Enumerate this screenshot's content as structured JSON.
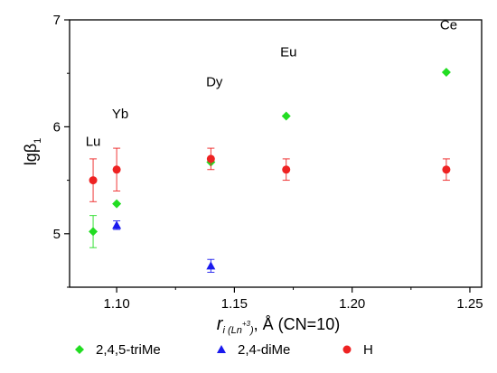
{
  "chart_data": {
    "type": "scatter",
    "title": "",
    "xlabel": {
      "main": "r",
      "sub": "i (Ln",
      "sup": "+3",
      "sub_close": ")",
      "rest": ", Å (CN=10)"
    },
    "ylabel": {
      "main": "lgβ",
      "sub": "1"
    },
    "xlim": [
      1.08,
      1.255
    ],
    "ylim": [
      4.5,
      7.0
    ],
    "x_ticks": [
      {
        "value": 1.1,
        "label": "1.10"
      },
      {
        "value": 1.15,
        "label": "1.15"
      },
      {
        "value": 1.2,
        "label": "1.20"
      },
      {
        "value": 1.25,
        "label": "1.25"
      }
    ],
    "y_ticks": [
      {
        "value": 5,
        "label": "5"
      },
      {
        "value": 6,
        "label": "6"
      },
      {
        "value": 7,
        "label": "7"
      }
    ],
    "grid": false,
    "legend_position": "bottom",
    "series": [
      {
        "name": "2,4,5-triMe",
        "marker": "diamond",
        "color": "#22dd22",
        "points": [
          {
            "x": 1.09,
            "y": 5.02,
            "err": 0.15
          },
          {
            "x": 1.1,
            "y": 5.28,
            "err": 0
          },
          {
            "x": 1.14,
            "y": 5.67,
            "err": 0
          },
          {
            "x": 1.172,
            "y": 6.1,
            "err": 0
          },
          {
            "x": 1.24,
            "y": 6.51,
            "err": 0
          }
        ]
      },
      {
        "name": "2,4-diMe",
        "marker": "triangle",
        "color": "#1a1aee",
        "points": [
          {
            "x": 1.1,
            "y": 5.08,
            "err": 0.04
          },
          {
            "x": 1.14,
            "y": 4.7,
            "err": 0.06
          }
        ]
      },
      {
        "name": "H",
        "marker": "circle",
        "color": "#ee2222",
        "points": [
          {
            "x": 1.09,
            "y": 5.5,
            "err": 0.2
          },
          {
            "x": 1.1,
            "y": 5.6,
            "err": 0.2
          },
          {
            "x": 1.14,
            "y": 5.7,
            "err": 0.1
          },
          {
            "x": 1.172,
            "y": 5.6,
            "err": 0.1
          },
          {
            "x": 1.24,
            "y": 5.6,
            "err": 0.1
          }
        ]
      }
    ],
    "annotations": [
      {
        "text": "Lu",
        "x": 1.09,
        "y": 5.82
      },
      {
        "text": "Yb",
        "x": 1.1015,
        "y": 6.08
      },
      {
        "text": "Dy",
        "x": 1.1415,
        "y": 6.38
      },
      {
        "text": "Eu",
        "x": 1.173,
        "y": 6.66
      },
      {
        "text": "Ce",
        "x": 1.241,
        "y": 6.91
      }
    ]
  }
}
